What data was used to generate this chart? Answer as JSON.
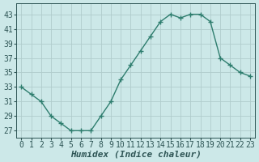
{
  "x": [
    0,
    1,
    2,
    3,
    4,
    5,
    6,
    7,
    8,
    9,
    10,
    11,
    12,
    13,
    14,
    15,
    16,
    17,
    18,
    19,
    20,
    21,
    22,
    23
  ],
  "y": [
    33,
    32,
    31,
    29,
    28,
    27,
    27,
    27,
    29,
    31,
    34,
    36,
    38,
    40,
    42,
    43,
    42.5,
    43,
    43,
    42,
    37,
    36,
    35,
    34.5
  ],
  "line_color": "#2e7d6e",
  "marker": "+",
  "marker_size": 4,
  "marker_lw": 1.0,
  "line_width": 1.0,
  "bg_color": "#cce8e8",
  "grid_color": "#b0cccc",
  "xlabel": "Humidex (Indice chaleur)",
  "ylim": [
    26,
    44.5
  ],
  "xlim": [
    -0.5,
    23.5
  ],
  "yticks": [
    27,
    29,
    31,
    33,
    35,
    37,
    39,
    41,
    43
  ],
  "xticks": [
    0,
    1,
    2,
    3,
    4,
    5,
    6,
    7,
    8,
    9,
    10,
    11,
    12,
    13,
    14,
    15,
    16,
    17,
    18,
    19,
    20,
    21,
    22,
    23
  ],
  "font_color": "#2e5555",
  "xlabel_fontsize": 8,
  "tick_fontsize": 7
}
